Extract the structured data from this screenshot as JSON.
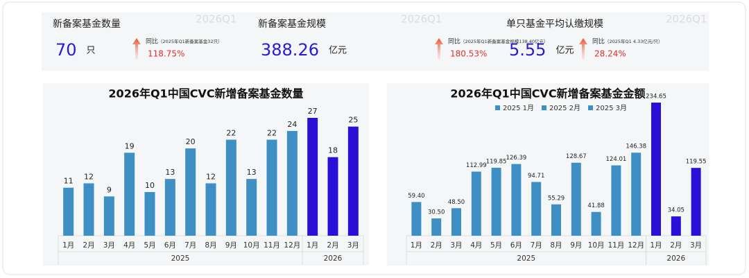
{
  "kpis": [
    {
      "title": "新备案基金数量",
      "value": "70",
      "unit": "只",
      "yoy": "同比",
      "note": "（2025年Q1新备案基金32只）",
      "change": "118.75%",
      "watermark": "2026Q1"
    },
    {
      "title": "新备案基金规模",
      "value": "388.26",
      "unit": "亿元",
      "yoy": "同比",
      "note": "（2025年Q1新备案基金规模138.40亿元）",
      "change": "180.53%",
      "watermark": "2026Q1"
    },
    {
      "title": "单只基金平均认缴规模",
      "value": "5.55",
      "unit": "亿元",
      "yoy": "同比",
      "note": "（2025年Q1 4.33亿元/只）",
      "change": "28.24%",
      "watermark": "2026Q1"
    }
  ],
  "chart_data": [
    {
      "type": "bar",
      "title": "2026年Q1中国CVC新增备案基金数量",
      "categories": [
        "1月",
        "2月",
        "3月",
        "4月",
        "5月",
        "6月",
        "7月",
        "8月",
        "9月",
        "10月",
        "11月",
        "12月",
        "1月",
        "2月",
        "3月"
      ],
      "values": [
        11,
        12,
        9,
        19,
        10,
        13,
        20,
        12,
        22,
        13,
        22,
        24,
        27,
        18,
        25
      ],
      "colors": [
        "#3d8fc4",
        "#3d8fc4",
        "#3d8fc4",
        "#3d8fc4",
        "#3d8fc4",
        "#3d8fc4",
        "#3d8fc4",
        "#3d8fc4",
        "#3d8fc4",
        "#3d8fc4",
        "#3d8fc4",
        "#3d8fc4",
        "#2a0fd6",
        "#2a0fd6",
        "#2a0fd6"
      ],
      "groups": [
        {
          "label": "2025",
          "span": 12
        },
        {
          "label": "2026",
          "span": 3
        }
      ]
    },
    {
      "type": "bar",
      "title": "2026年Q1中国CVC新增备案基金金额",
      "legend": [
        {
          "name": "2025 1月",
          "color": "#3d8fc4"
        },
        {
          "name": "2025 2月",
          "color": "#3d8fc4"
        },
        {
          "name": "2025 3月",
          "color": "#3d8fc4"
        }
      ],
      "categories": [
        "1月",
        "2月",
        "3月",
        "4月",
        "5月",
        "6月",
        "7月",
        "8月",
        "9月",
        "10月",
        "11月",
        "12月",
        "1月",
        "2月",
        "3月"
      ],
      "values": [
        59.4,
        30.5,
        48.5,
        112.99,
        119.85,
        126.39,
        94.71,
        55.29,
        128.67,
        41.88,
        124.01,
        146.38,
        234.65,
        34.05,
        119.55
      ],
      "value_labels": [
        "59.40",
        "30.50",
        "48.50",
        "112.99",
        "119.85",
        "126.39",
        "94.71",
        "55.29",
        "128.67",
        "41.88",
        "124.01",
        "146.38",
        "234.65",
        "34.05",
        "119.55"
      ],
      "colors": [
        "#3d8fc4",
        "#3d8fc4",
        "#3d8fc4",
        "#3d8fc4",
        "#3d8fc4",
        "#3d8fc4",
        "#3d8fc4",
        "#3d8fc4",
        "#3d8fc4",
        "#3d8fc4",
        "#3d8fc4",
        "#3d8fc4",
        "#2a0fd6",
        "#2a0fd6",
        "#2a0fd6"
      ],
      "groups": [
        {
          "label": "2025",
          "span": 12
        },
        {
          "label": "2026",
          "span": 3
        }
      ]
    }
  ]
}
